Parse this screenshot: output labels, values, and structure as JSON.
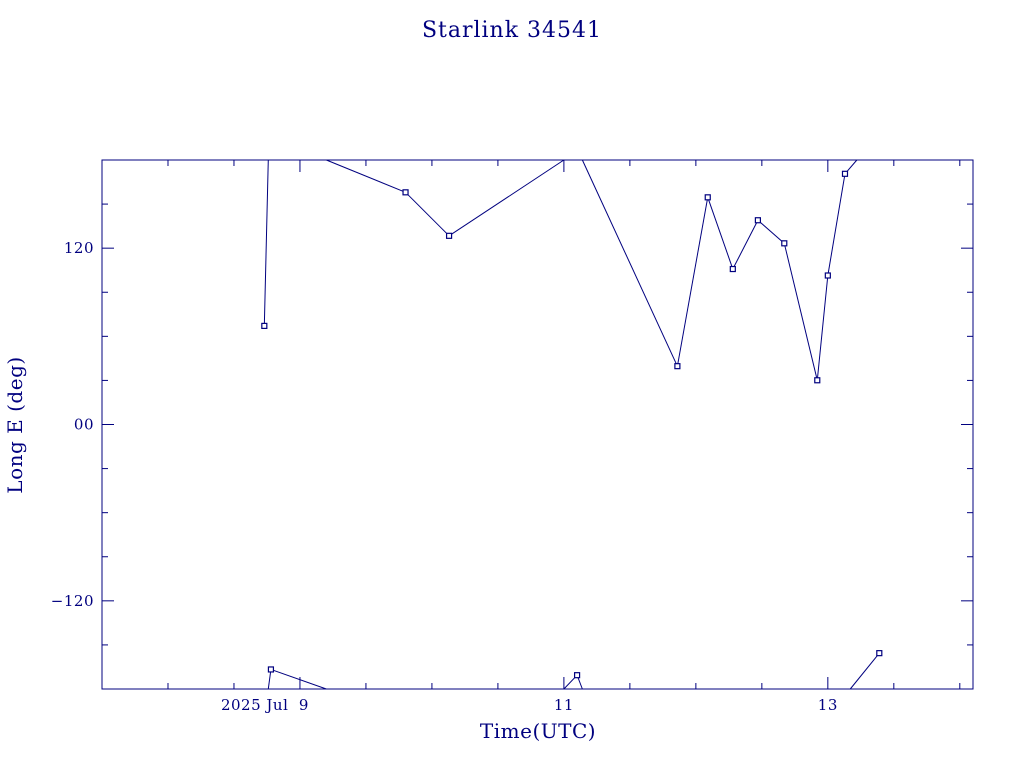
{
  "chart_data": {
    "type": "line",
    "title": "Starlink 34541",
    "xlabel": "Time(UTC)",
    "ylabel": "Long E (deg)",
    "color": "#00007f",
    "x_unit": "days (UTC), July 2025",
    "xlim": [
      7.5,
      14.1
    ],
    "ylim": [
      -180,
      180
    ],
    "grid": false,
    "x_ticks": [
      {
        "value": 9,
        "label": "2025 Jul  9"
      },
      {
        "value": 11,
        "label": "11"
      },
      {
        "value": 13,
        "label": "13"
      }
    ],
    "y_ticks": [
      {
        "value": 120,
        "label": "120"
      },
      {
        "value": 0,
        "label": "00"
      },
      {
        "value": -120,
        "label": "−120"
      }
    ],
    "segments": [
      [
        [
          8.73,
          67.1
        ],
        [
          8.76,
          180
        ]
      ],
      [
        [
          8.76,
          -180
        ],
        [
          8.78,
          -166.7
        ]
      ],
      [
        [
          8.78,
          -166.7
        ],
        [
          9.2,
          -180
        ]
      ],
      [
        [
          9.2,
          180
        ],
        [
          9.8,
          158.0
        ]
      ],
      [
        [
          9.8,
          158.0
        ],
        [
          10.13,
          128.4
        ]
      ],
      [
        [
          10.13,
          128.4
        ],
        [
          11.0,
          180
        ]
      ],
      [
        [
          11.0,
          -180
        ],
        [
          11.1,
          -170.6
        ]
      ],
      [
        [
          11.1,
          -170.6
        ],
        [
          11.14,
          -180
        ]
      ],
      [
        [
          11.14,
          180
        ],
        [
          11.86,
          39.7
        ]
      ],
      [
        [
          11.86,
          39.7
        ],
        [
          12.09,
          154.6
        ]
      ],
      [
        [
          12.09,
          154.6
        ],
        [
          12.28,
          105.8
        ]
      ],
      [
        [
          12.28,
          105.8
        ],
        [
          12.47,
          139.0
        ]
      ],
      [
        [
          12.47,
          139.0
        ],
        [
          12.67,
          123.3
        ]
      ],
      [
        [
          12.67,
          123.3
        ],
        [
          12.92,
          30.1
        ]
      ],
      [
        [
          12.92,
          30.1
        ],
        [
          13.0,
          101.4
        ]
      ],
      [
        [
          13.0,
          101.4
        ],
        [
          13.13,
          170.6
        ]
      ],
      [
        [
          13.13,
          170.6
        ],
        [
          13.22,
          180
        ]
      ],
      [
        [
          13.17,
          -180
        ],
        [
          13.39,
          -155.6
        ]
      ]
    ],
    "points": [
      [
        8.73,
        67.1
      ],
      [
        8.78,
        -166.7
      ],
      [
        9.8,
        158.0
      ],
      [
        10.13,
        128.4
      ],
      [
        11.1,
        -170.6
      ],
      [
        11.86,
        39.7
      ],
      [
        12.09,
        154.6
      ],
      [
        12.28,
        105.8
      ],
      [
        12.47,
        139.0
      ],
      [
        12.67,
        123.3
      ],
      [
        12.92,
        30.1
      ],
      [
        13.0,
        101.4
      ],
      [
        13.13,
        170.6
      ],
      [
        13.39,
        -155.6
      ]
    ]
  }
}
